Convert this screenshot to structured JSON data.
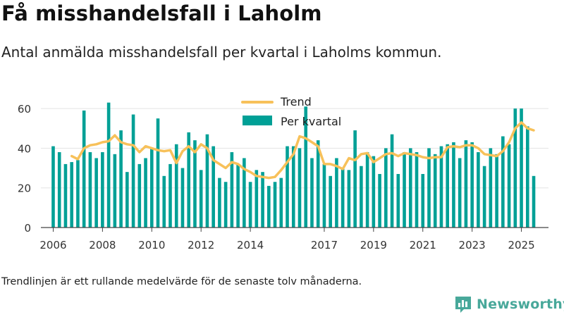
{
  "header": {
    "title": "Få misshandelsfall i Laholm",
    "subtitle": "Antal anmälda misshandelsfall per kvartal i Laholms kommun."
  },
  "footer": {
    "note": "Trendlinjen är ett rullande medelvärde för de senaste tolv månaderna.",
    "brand": "Newsworthy"
  },
  "colors": {
    "bar": "#00a096",
    "trend": "#f7c15a",
    "grid": "#e3e3e3",
    "axis": "#444444",
    "brand": "#48a89a"
  },
  "chart_data": {
    "type": "bar",
    "title": "Få misshandelsfall i Laholm",
    "ylim": [
      0,
      65
    ],
    "yticks": [
      0,
      20,
      40,
      60
    ],
    "x_range": [
      2005.5,
      2026.1
    ],
    "xticks": [
      2006,
      2008,
      2010,
      2012,
      2014,
      2017,
      2019,
      2021,
      2023,
      2025
    ],
    "grid": true,
    "legend_position": "top-center",
    "series": [
      {
        "name": "Per kvartal",
        "kind": "bar",
        "x": [
          2006.0,
          2006.25,
          2006.5,
          2006.75,
          2007.0,
          2007.25,
          2007.5,
          2007.75,
          2008.0,
          2008.25,
          2008.5,
          2008.75,
          2009.0,
          2009.25,
          2009.5,
          2009.75,
          2010.0,
          2010.25,
          2010.5,
          2010.75,
          2011.0,
          2011.25,
          2011.5,
          2011.75,
          2012.0,
          2012.25,
          2012.5,
          2012.75,
          2013.0,
          2013.25,
          2013.5,
          2013.75,
          2014.0,
          2014.25,
          2014.5,
          2014.75,
          2015.0,
          2015.25,
          2015.5,
          2015.75,
          2016.0,
          2016.25,
          2016.5,
          2016.75,
          2017.0,
          2017.25,
          2017.5,
          2017.75,
          2018.0,
          2018.25,
          2018.5,
          2018.75,
          2019.0,
          2019.25,
          2019.5,
          2019.75,
          2020.0,
          2020.25,
          2020.5,
          2020.75,
          2021.0,
          2021.25,
          2021.5,
          2021.75,
          2022.0,
          2022.25,
          2022.5,
          2022.75,
          2023.0,
          2023.25,
          2023.5,
          2023.75,
          2024.0,
          2024.25,
          2024.5,
          2024.75,
          2025.0,
          2025.25,
          2025.5
        ],
        "values": [
          41,
          38,
          32,
          33,
          34,
          59,
          38,
          35,
          38,
          63,
          37,
          49,
          28,
          57,
          32,
          35,
          40,
          55,
          26,
          32,
          42,
          30,
          48,
          44,
          29,
          47,
          41,
          25,
          23,
          38,
          32,
          35,
          23,
          29,
          28,
          21,
          23,
          25,
          41,
          41,
          40,
          61,
          35,
          44,
          32,
          26,
          35,
          30,
          29,
          49,
          31,
          38,
          36,
          27,
          40,
          47,
          27,
          38,
          40,
          38,
          27,
          40,
          37,
          41,
          42,
          43,
          35,
          44,
          43,
          38,
          31,
          40,
          37,
          46,
          42,
          60,
          60,
          51,
          26
        ]
      },
      {
        "name": "Trend",
        "kind": "line",
        "x": [
          2006.75,
          2007.0,
          2007.25,
          2007.5,
          2007.75,
          2008.0,
          2008.25,
          2008.5,
          2008.75,
          2009.0,
          2009.25,
          2009.5,
          2009.75,
          2010.0,
          2010.25,
          2010.5,
          2010.75,
          2011.0,
          2011.25,
          2011.5,
          2011.75,
          2012.0,
          2012.25,
          2012.5,
          2012.75,
          2013.0,
          2013.25,
          2013.5,
          2013.75,
          2014.0,
          2014.25,
          2014.5,
          2014.75,
          2015.0,
          2015.25,
          2015.5,
          2015.75,
          2016.0,
          2016.25,
          2016.5,
          2016.75,
          2017.0,
          2017.25,
          2017.5,
          2017.75,
          2018.0,
          2018.25,
          2018.5,
          2018.75,
          2019.0,
          2019.25,
          2019.5,
          2019.75,
          2020.0,
          2020.25,
          2020.5,
          2020.75,
          2021.0,
          2021.25,
          2021.5,
          2021.75,
          2022.0,
          2022.25,
          2022.5,
          2022.75,
          2023.0,
          2023.25,
          2023.5,
          2023.75,
          2024.0,
          2024.25,
          2024.5,
          2024.75,
          2025.0,
          2025.25,
          2025.5
        ],
        "values": [
          36,
          34.5,
          40,
          41.5,
          42,
          43,
          43.5,
          46.5,
          43,
          42,
          41.5,
          38,
          41,
          40,
          39,
          38.5,
          39,
          32.5,
          38.5,
          41,
          38,
          42,
          40,
          34,
          32,
          30,
          33,
          32,
          29.5,
          28,
          26,
          25.5,
          25,
          25.5,
          29,
          33,
          37,
          46,
          45,
          43,
          41,
          32,
          32,
          31,
          29.5,
          35,
          34,
          37,
          37.5,
          33,
          35,
          37,
          37.5,
          36,
          37.5,
          37,
          36.5,
          35.5,
          35,
          35.5,
          35.5,
          40.5,
          41,
          40.5,
          41.5,
          41.5,
          40,
          37,
          36.5,
          36,
          38.5,
          43,
          50,
          53,
          50,
          49
        ]
      }
    ]
  }
}
